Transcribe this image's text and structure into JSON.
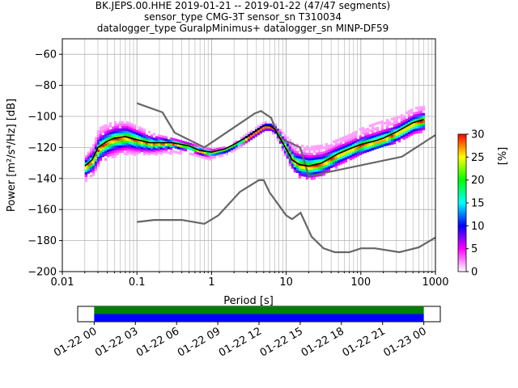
{
  "title_lines": [
    "BK.JEPS.00.HHE   2019-01-21 -- 2019-01-22  (47/47 segments)",
    "sensor_type CMG-3T sensor_sn T310034",
    "datalogger_type GuralpMinimus+ datalogger_sn MINP-DF59"
  ],
  "chart_data": [
    {
      "type": "heatmap",
      "xlabel": "Period [s]",
      "ylabel": "Power [m²/s⁴/Hz] [dB]",
      "xscale": "log",
      "xlim": [
        0.01,
        1000
      ],
      "ylim": [
        -200,
        -50
      ],
      "x_ticks": [
        {
          "value": 0.01,
          "label": "0.01"
        },
        {
          "value": 0.1,
          "label": "0.1"
        },
        {
          "value": 1,
          "label": "1"
        },
        {
          "value": 10,
          "label": "10"
        },
        {
          "value": 100,
          "label": "100"
        },
        {
          "value": 1000,
          "label": "1000"
        }
      ],
      "y_ticks": [
        -200,
        -180,
        -160,
        -140,
        -120,
        -100,
        -80,
        -60
      ],
      "grid": true,
      "colorbar": {
        "label": "[%]",
        "range": [
          0,
          30
        ],
        "ticks": [
          0,
          5,
          10,
          15,
          20,
          25,
          30
        ],
        "colormap": [
          "#ffffff",
          "#ff00ff",
          "#0000ff",
          "#00ffff",
          "#00ff00",
          "#ffff00",
          "#ff0000"
        ]
      },
      "mode_curve": {
        "x": [
          0.02,
          0.025,
          0.03,
          0.04,
          0.05,
          0.07,
          0.1,
          0.15,
          0.2,
          0.3,
          0.5,
          0.7,
          1,
          1.5,
          2,
          3,
          4,
          5,
          6,
          7,
          8,
          10,
          12,
          15,
          20,
          30,
          50,
          70,
          100,
          150,
          200,
          300,
          500,
          700
        ],
        "y": [
          -132,
          -128,
          -120,
          -116,
          -114,
          -113,
          -115,
          -117,
          -117,
          -117,
          -119,
          -122,
          -123,
          -121,
          -118,
          -113,
          -109,
          -106,
          -106,
          -108,
          -113,
          -121,
          -128,
          -131,
          -132,
          -130,
          -124,
          -121,
          -118,
          -116,
          -114,
          -110,
          -104,
          -102
        ]
      },
      "noise_models": [
        {
          "name": "high",
          "x": [
            0.1,
            0.22,
            0.32,
            0.8,
            3.8,
            4.6,
            6.3,
            7.9,
            15.4,
            20,
            354.8,
            1000
          ],
          "y": [
            -91.5,
            -97.4,
            -110.5,
            -120,
            -98,
            -96.5,
            -101,
            -113.5,
            -120,
            -138.5,
            -126,
            -112
          ]
        },
        {
          "name": "low",
          "x": [
            0.1,
            0.17,
            0.4,
            0.8,
            1.24,
            2.4,
            4.3,
            5,
            6,
            10,
            12,
            15.6,
            21.9,
            31.6,
            45,
            70,
            101,
            154,
            328,
            600,
            1000
          ],
          "y": [
            -168,
            -166.7,
            -166.7,
            -169.2,
            -163.7,
            -148.6,
            -141.1,
            -141.1,
            -149,
            -163.8,
            -166.2,
            -162.1,
            -177.5,
            -185,
            -187.5,
            -187.5,
            -185,
            -185,
            -187.5,
            -184.4,
            -178
          ]
        }
      ],
      "spread": {
        "x": [
          0.02,
          0.025,
          0.03,
          0.04,
          0.05,
          0.07,
          0.1,
          0.15,
          0.2,
          0.3,
          0.5,
          0.7,
          1,
          1.5,
          2,
          3,
          4,
          5,
          6,
          7,
          8,
          10,
          12,
          15,
          20,
          30,
          50,
          70,
          100,
          150,
          200,
          300,
          500,
          700
        ],
        "upper": [
          -125,
          -118,
          -107,
          -104,
          -103,
          -103,
          -106,
          -110,
          -112,
          -114,
          -117,
          -119,
          -121,
          -119,
          -116,
          -110,
          -106,
          -103,
          -103,
          -105,
          -108,
          -113,
          -117,
          -118,
          -119,
          -118,
          -114,
          -111,
          -107,
          -104,
          -102,
          -100,
          -94,
          -93
        ],
        "lower": [
          -141,
          -137,
          -130,
          -126,
          -125,
          -124,
          -124,
          -124,
          -124,
          -123,
          -124,
          -126,
          -127,
          -124,
          -121,
          -116,
          -112,
          -109,
          -109,
          -112,
          -118,
          -128,
          -134,
          -139,
          -140,
          -137,
          -131,
          -127,
          -124,
          -121,
          -119,
          -116,
          -111,
          -110
        ]
      }
    },
    {
      "type": "timeline",
      "ticks": [
        "01-22 00",
        "01-22 03",
        "01-22 06",
        "01-22 09",
        "01-22 12",
        "01-22 15",
        "01-22 18",
        "01-22 21",
        "01-23 00"
      ],
      "tick_hours": [
        0,
        3,
        6,
        9,
        12,
        15,
        18,
        21,
        24
      ],
      "range_hours": [
        -1.2,
        25.2
      ],
      "bars": [
        {
          "color": "#008000",
          "start_hour": 0,
          "end_hour": 24
        },
        {
          "color": "#0000ff",
          "start_hour": 0,
          "end_hour": 24
        }
      ]
    }
  ]
}
